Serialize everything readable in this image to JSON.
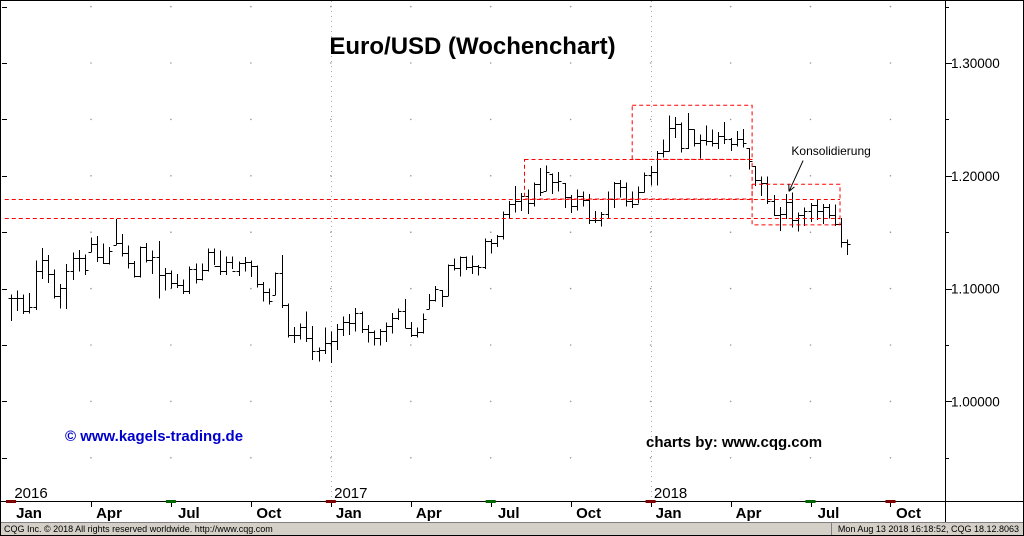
{
  "header": {
    "title": "Euro/USD (Wochenchart)"
  },
  "watermarks": {
    "kagels": "© www.kagels-trading.de",
    "cqg_credit": "charts by: www.cqg.com"
  },
  "annotation": {
    "label": "Konsolidierung"
  },
  "status_bar": {
    "left": "CQG Inc. © 2018 All rights reserved worldwide. http://www.cqg.com",
    "right": "Mon Aug 13 2018 16:18:52, CQG 18.12.8063"
  },
  "colors": {
    "bar": "#000000",
    "annotation": "#ff0000",
    "arrow": "#000000",
    "watermark_blue": "#0000cc",
    "grid_dot": "#999999",
    "year_line": "#aaaaaa",
    "axis": "#000000",
    "axis_marker_red": "#800000",
    "axis_marker_green": "#006400",
    "statusbar_bg": "#d4d0c8"
  },
  "chart_data": {
    "type": "bar",
    "subtype": "weekly-ohlc-bars",
    "title": "Euro/USD (Wochenchart)",
    "instrument": "Euro/USD",
    "timeframe": "weekly",
    "start_date": "2016-01-04",
    "grid": "dotted-intersections",
    "legend_position": "none",
    "ylim": [
      0.912,
      1.355
    ],
    "y_axis": {
      "side": "right",
      "ticks": [
        {
          "label": "1.00000",
          "price": 1.0
        },
        {
          "label": "1.10000",
          "price": 1.1
        },
        {
          "label": "1.20000",
          "price": 1.2
        },
        {
          "label": "1.30000",
          "price": 1.3
        }
      ]
    },
    "x_axis": {
      "months": [
        {
          "label": "Jan",
          "week": 0
        },
        {
          "label": "Apr",
          "week": 13
        },
        {
          "label": "Jul",
          "week": 26
        },
        {
          "label": "Oct",
          "week": 39
        },
        {
          "label": "Jan",
          "week": 52
        },
        {
          "label": "Apr",
          "week": 65
        },
        {
          "label": "Jul",
          "week": 78
        },
        {
          "label": "Oct",
          "week": 91
        },
        {
          "label": "Jan",
          "week": 104
        },
        {
          "label": "Apr",
          "week": 117
        },
        {
          "label": "Jul",
          "week": 130
        },
        {
          "label": "Oct",
          "week": 143
        }
      ],
      "years": [
        {
          "label": "2016",
          "week": 0
        },
        {
          "label": "2017",
          "week": 52
        },
        {
          "label": "2018",
          "week": 104
        }
      ]
    },
    "bars_hlc": [
      [
        1.0947,
        1.0711,
        1.0921
      ],
      [
        1.0985,
        1.0802,
        1.0916
      ],
      [
        1.095,
        1.0777,
        1.0799
      ],
      [
        1.096,
        1.0778,
        1.0834
      ],
      [
        1.125,
        1.081,
        1.1156
      ],
      [
        1.136,
        1.1085,
        1.1256
      ],
      [
        1.13,
        1.1052,
        1.1131
      ],
      [
        1.117,
        1.0912,
        1.0932
      ],
      [
        1.1043,
        1.0825,
        1.1007
      ],
      [
        1.1218,
        1.0821,
        1.1154
      ],
      [
        1.132,
        1.1077,
        1.1268
      ],
      [
        1.1342,
        1.1151,
        1.127
      ],
      [
        1.1304,
        1.1119,
        1.1166
      ],
      [
        1.1454,
        1.1326,
        1.1397
      ],
      [
        1.1465,
        1.1234,
        1.1283
      ],
      [
        1.1398,
        1.1217,
        1.1223
      ],
      [
        1.1368,
        1.1216,
        1.133
      ],
      [
        1.1616,
        1.1386,
        1.1403
      ],
      [
        1.1483,
        1.1283,
        1.1312
      ],
      [
        1.1382,
        1.118,
        1.1223
      ],
      [
        1.1244,
        1.1097,
        1.1114
      ],
      [
        1.1374,
        1.1098,
        1.1366
      ],
      [
        1.1403,
        1.1233,
        1.1252
      ],
      [
        1.134,
        1.113,
        1.1277
      ],
      [
        1.1422,
        1.0912,
        1.1117
      ],
      [
        1.1181,
        1.0984,
        1.1136
      ],
      [
        1.116,
        1.1002,
        1.1053
      ],
      [
        1.113,
        1.1006,
        1.1034
      ],
      [
        1.1083,
        1.0952,
        1.0977
      ],
      [
        1.1198,
        1.0952,
        1.1175
      ],
      [
        1.1222,
        1.1046,
        1.1087
      ],
      [
        1.1222,
        1.1073,
        1.1163
      ],
      [
        1.1356,
        1.1152,
        1.1326
      ],
      [
        1.1355,
        1.1211,
        1.1199
      ],
      [
        1.134,
        1.1123,
        1.1156
      ],
      [
        1.1285,
        1.1119,
        1.1233
      ],
      [
        1.1284,
        1.1174,
        1.1154
      ],
      [
        1.1242,
        1.1114,
        1.1226
      ],
      [
        1.1279,
        1.1153,
        1.1237
      ],
      [
        1.125,
        1.1104,
        1.1198
      ],
      [
        1.1205,
        1.1009,
        1.1043
      ],
      [
        1.1058,
        1.0887,
        1.0972
      ],
      [
        1.1,
        1.086,
        1.0886
      ],
      [
        1.1143,
        1.0945,
        1.114
      ],
      [
        1.13,
        1.083,
        1.0857
      ],
      [
        1.087,
        1.0569,
        1.0591
      ],
      [
        1.0658,
        1.0518,
        1.0589
      ],
      [
        1.069,
        1.0551,
        1.0664
      ],
      [
        1.0797,
        1.0525,
        1.0561
      ],
      [
        1.067,
        1.0367,
        1.045
      ],
      [
        1.048,
        1.0352,
        1.0456
      ],
      [
        1.0654,
        1.0422,
        1.0517
      ],
      [
        1.062,
        1.034,
        1.0532
      ],
      [
        1.0685,
        1.0454,
        1.0643
      ],
      [
        1.0755,
        1.0579,
        1.0702
      ],
      [
        1.0775,
        1.0589,
        1.0699
      ],
      [
        1.0829,
        1.062,
        1.0783
      ],
      [
        1.0798,
        1.0608,
        1.0643
      ],
      [
        1.0679,
        1.0521,
        1.0616
      ],
      [
        1.0631,
        1.0494,
        1.0562
      ],
      [
        1.064,
        1.0494,
        1.0622
      ],
      [
        1.07,
        1.0525,
        1.0673
      ],
      [
        1.0782,
        1.0601,
        1.0739
      ],
      [
        1.0825,
        1.0722,
        1.0798
      ],
      [
        1.0906,
        1.0651,
        1.0651
      ],
      [
        1.0704,
        1.057,
        1.0592
      ],
      [
        1.0655,
        1.0569,
        1.0614
      ],
      [
        1.0778,
        1.0604,
        1.0727
      ],
      [
        1.0951,
        1.0821,
        1.0896
      ],
      [
        1.1023,
        1.0885,
        1.0999
      ],
      [
        1.099,
        1.0839,
        1.0932
      ],
      [
        1.1212,
        1.0933,
        1.1206
      ],
      [
        1.1268,
        1.1161,
        1.1184
      ],
      [
        1.1285,
        1.1109,
        1.1283
      ],
      [
        1.1285,
        1.1166,
        1.1196
      ],
      [
        1.1295,
        1.1131,
        1.1198
      ],
      [
        1.1209,
        1.1118,
        1.1194
      ],
      [
        1.1445,
        1.1172,
        1.1426
      ],
      [
        1.144,
        1.1312,
        1.1401
      ],
      [
        1.1474,
        1.1371,
        1.1468
      ],
      [
        1.1684,
        1.1436,
        1.1663
      ],
      [
        1.1777,
        1.1623,
        1.1752
      ],
      [
        1.191,
        1.1675,
        1.1773
      ],
      [
        1.1846,
        1.1688,
        1.1822
      ],
      [
        1.1879,
        1.1661,
        1.176
      ],
      [
        1.1941,
        1.173,
        1.1924
      ],
      [
        1.207,
        1.1823,
        1.1861
      ],
      [
        1.2092,
        1.1867,
        1.2035
      ],
      [
        1.202,
        1.1837,
        1.1945
      ],
      [
        1.2033,
        1.1861,
        1.1951
      ],
      [
        1.1937,
        1.1717,
        1.1814
      ],
      [
        1.1828,
        1.1669,
        1.173
      ],
      [
        1.188,
        1.1692,
        1.1821
      ],
      [
        1.186,
        1.173,
        1.1784
      ],
      [
        1.1837,
        1.1574,
        1.1609
      ],
      [
        1.169,
        1.158,
        1.161
      ],
      [
        1.1678,
        1.1553,
        1.1665
      ],
      [
        1.1862,
        1.1622,
        1.1794
      ],
      [
        1.1944,
        1.1713,
        1.1933
      ],
      [
        1.1961,
        1.1809,
        1.1898
      ],
      [
        1.194,
        1.173,
        1.1774
      ],
      [
        1.1862,
        1.1717,
        1.1753
      ],
      [
        1.1904,
        1.1753,
        1.1861
      ],
      [
        1.2028,
        1.1853,
        1.2005
      ],
      [
        1.2089,
        1.1915,
        1.2032
      ],
      [
        1.2218,
        1.1916,
        1.2203
      ],
      [
        1.2323,
        1.2164,
        1.2224
      ],
      [
        1.2537,
        1.2214,
        1.2426
      ],
      [
        1.2523,
        1.2335,
        1.2461
      ],
      [
        1.2475,
        1.2206,
        1.2251
      ],
      [
        1.2556,
        1.2236,
        1.2412
      ],
      [
        1.2413,
        1.2258,
        1.2295
      ],
      [
        1.2365,
        1.2155,
        1.2316
      ],
      [
        1.2446,
        1.2269,
        1.2307
      ],
      [
        1.2413,
        1.2259,
        1.229
      ],
      [
        1.2389,
        1.224,
        1.2354
      ],
      [
        1.2476,
        1.2283,
        1.2324
      ],
      [
        1.2335,
        1.2218,
        1.2282
      ],
      [
        1.2397,
        1.2261,
        1.233
      ],
      [
        1.2414,
        1.225,
        1.2288
      ],
      [
        1.2245,
        1.2055,
        1.213
      ],
      [
        1.2087,
        1.191,
        1.196
      ],
      [
        1.1995,
        1.1822,
        1.194
      ],
      [
        1.1996,
        1.175,
        1.1775
      ],
      [
        1.183,
        1.1646,
        1.1651
      ],
      [
        1.1725,
        1.151,
        1.1659
      ],
      [
        1.184,
        1.1616,
        1.1768
      ],
      [
        1.1852,
        1.1543,
        1.1607
      ],
      [
        1.1675,
        1.1508,
        1.1655
      ],
      [
        1.1721,
        1.1555,
        1.1684
      ],
      [
        1.176,
        1.1591,
        1.1744
      ],
      [
        1.179,
        1.161,
        1.1686
      ],
      [
        1.175,
        1.1575,
        1.1724
      ],
      [
        1.175,
        1.162,
        1.1656
      ],
      [
        1.1746,
        1.1555,
        1.157
      ],
      [
        1.1628,
        1.1365,
        1.1414
      ],
      [
        1.1435,
        1.1299,
        1.1395
      ]
    ],
    "annotations": {
      "rects": [
        {
          "name": "top-consolidation-2018",
          "w0": 101.0,
          "w1": 120.5,
          "p0": 1.2145,
          "p1": 1.2625
        },
        {
          "name": "range-late-2017",
          "w0": 83.5,
          "w1": 120.5,
          "p0": 1.1795,
          "p1": 1.2145
        },
        {
          "name": "current-consolidation",
          "w0": 120.5,
          "w1": 134.8,
          "p0": 1.1565,
          "p1": 1.1925
        }
      ],
      "hlines": [
        {
          "w0": -1.0,
          "w1": 134.8,
          "price": 1.1795
        },
        {
          "w0": -1.0,
          "w1": 134.8,
          "price": 1.1625
        }
      ],
      "arrow": {
        "from_w": 128.8,
        "from_p": 1.2135,
        "to_w": 126.5,
        "to_p": 1.1862
      },
      "label": {
        "w": 126.9,
        "p": 1.222
      }
    },
    "axis_segments": [
      {
        "week": 0,
        "color": "#800000"
      },
      {
        "week": 26,
        "color": "#006400"
      },
      {
        "week": 52,
        "color": "#800000"
      },
      {
        "week": 78,
        "color": "#006400"
      },
      {
        "week": 104,
        "color": "#800000"
      },
      {
        "week": 130,
        "color": "#006400"
      },
      {
        "week": 143,
        "color": "#800000"
      }
    ]
  }
}
